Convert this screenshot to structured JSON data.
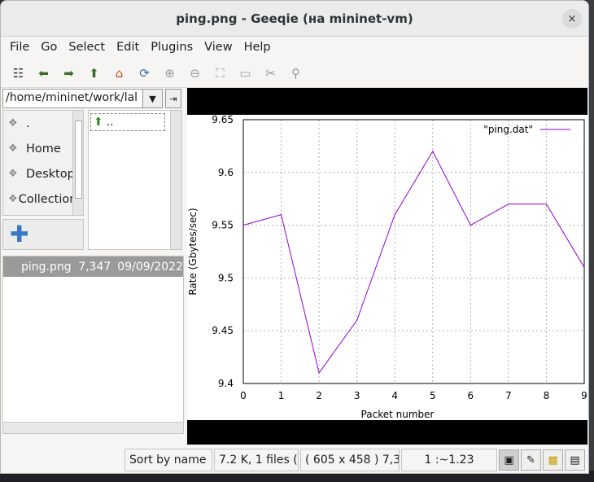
{
  "window": {
    "title": "ping.png - Geeqie (на mininet-vm)",
    "close_icon": "×"
  },
  "menu": [
    "File",
    "Go",
    "Select",
    "Edit",
    "Plugins",
    "View",
    "Help"
  ],
  "toolbar": [
    {
      "name": "thumbnails-icon",
      "glyph": "☷"
    },
    {
      "name": "back-icon",
      "glyph": "⬅"
    },
    {
      "name": "forward-icon",
      "glyph": "➡"
    },
    {
      "name": "up-icon",
      "glyph": "⬆"
    },
    {
      "name": "home-icon",
      "glyph": "⌂"
    },
    {
      "name": "refresh-icon",
      "glyph": "⟳"
    },
    {
      "name": "zoom-in-icon",
      "glyph": "⊕"
    },
    {
      "name": "zoom-out-icon",
      "glyph": "⊖"
    },
    {
      "name": "zoom-fit-icon",
      "glyph": "⛶"
    },
    {
      "name": "zoom-1-1-icon",
      "glyph": "▭"
    },
    {
      "name": "preferences-icon",
      "glyph": "✂"
    },
    {
      "name": "pin-icon",
      "glyph": "⚲"
    }
  ],
  "path": {
    "value": "/home/mininet/work/lal"
  },
  "bookmarks": [
    ".",
    "Home",
    "Desktop",
    "Collections"
  ],
  "dirlist": {
    "up_label": ".."
  },
  "files": [
    {
      "name": "ping.png",
      "size": "7,347",
      "date": "09/09/2022"
    }
  ],
  "statusbar": {
    "sort": "Sort by name",
    "count": "7.2 K, 1 files (",
    "dims": "( 605 x 458 ) 7,3",
    "zoom": "1 :~1.23"
  },
  "chart_data": {
    "type": "line",
    "legend": "\"ping.dat\"",
    "legend_position": "top-right",
    "xlabel": "Packet number",
    "ylabel": "Rate (Gbytes/sec)",
    "xlim": [
      0,
      9
    ],
    "ylim": [
      9.4,
      9.65
    ],
    "grid": true,
    "x_ticks": [
      "0",
      "1",
      "2",
      "3",
      "4",
      "5",
      "6",
      "7",
      "8",
      "9"
    ],
    "y_ticks": [
      "9.4",
      "9.45",
      "9.5",
      "9.55",
      "9.6",
      "9.65"
    ],
    "series": [
      {
        "name": "\"ping.dat\"",
        "color": "#9400d3",
        "x": [
          0,
          1,
          2,
          3,
          4,
          5,
          6,
          7,
          8,
          9
        ],
        "y": [
          9.55,
          9.56,
          9.41,
          9.46,
          9.56,
          9.62,
          9.55,
          9.57,
          9.57,
          9.51
        ]
      }
    ]
  }
}
